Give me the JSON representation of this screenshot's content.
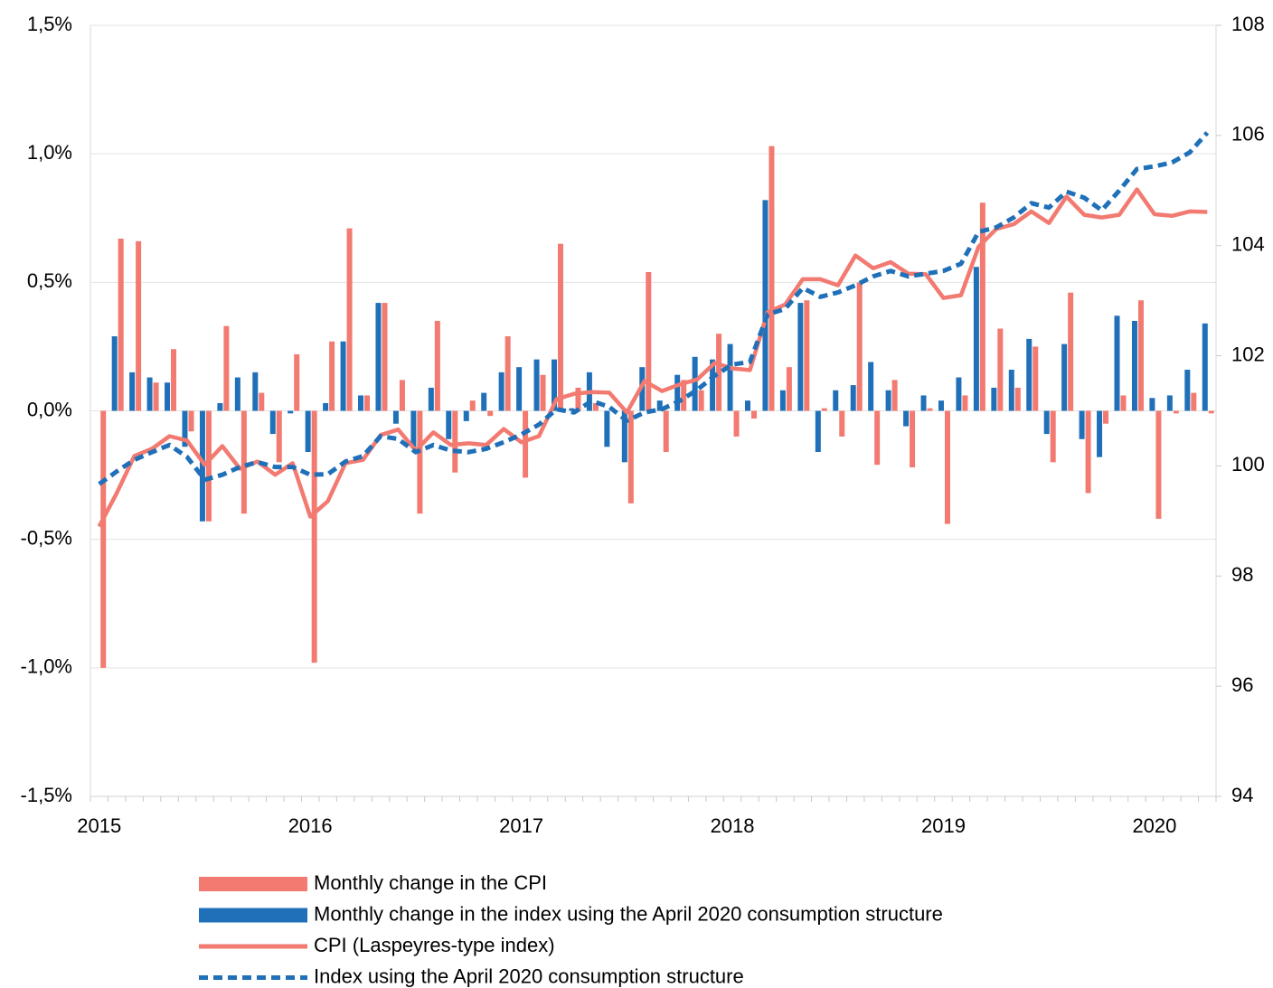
{
  "chart_data": {
    "type": "bar",
    "categories": [
      "2015",
      null,
      null,
      null,
      null,
      null,
      null,
      null,
      null,
      null,
      null,
      null,
      "2016",
      null,
      null,
      null,
      null,
      null,
      null,
      null,
      null,
      null,
      null,
      null,
      "2017",
      null,
      null,
      null,
      null,
      null,
      null,
      null,
      null,
      null,
      null,
      null,
      "2018",
      null,
      null,
      null,
      null,
      null,
      null,
      null,
      null,
      null,
      null,
      null,
      "2019",
      null,
      null,
      null,
      null,
      null,
      null,
      null,
      null,
      null,
      null,
      null,
      "2020",
      null,
      null,
      null
    ],
    "ylim": [
      -1.5,
      1.5
    ],
    "yticks": [
      {
        "value": -1.5,
        "label": "-1,5%"
      },
      {
        "value": -1,
        "label": "-1,0%"
      },
      {
        "value": -0.5,
        "label": "-0,5%"
      },
      {
        "value": 0,
        "label": "0,0%"
      },
      {
        "value": 0.5,
        "label": "0,5%"
      },
      {
        "value": 1,
        "label": "1,0%"
      },
      {
        "value": 1.5,
        "label": "1,5%"
      }
    ],
    "y2lim": [
      94,
      108
    ],
    "y2ticks": [
      94,
      96,
      98,
      100,
      102,
      104,
      106,
      108
    ],
    "grid": true,
    "legend": "bottom",
    "series": [
      {
        "name": "Monthly change in the CPI",
        "type": "bar",
        "color": "#f27a70",
        "values": [
          -1.0,
          0.67,
          0.66,
          0.11,
          0.24,
          -0.08,
          -0.43,
          0.33,
          -0.4,
          0.07,
          -0.2,
          0.22,
          -0.98,
          0.27,
          0.71,
          0.06,
          0.42,
          0.12,
          -0.4,
          0.35,
          -0.24,
          0.04,
          -0.02,
          0.29,
          -0.26,
          0.14,
          0.65,
          0.09,
          0.03,
          0.0,
          -0.36,
          0.54,
          -0.16,
          0.12,
          0.08,
          0.3,
          -0.1,
          -0.03,
          1.03,
          0.17,
          0.43,
          0.01,
          -0.1,
          0.5,
          -0.21,
          0.12,
          -0.22,
          0.01,
          -0.44,
          0.06,
          0.81,
          0.32,
          0.09,
          0.25,
          -0.2,
          0.46,
          -0.32,
          -0.05,
          0.06,
          0.43,
          -0.42,
          -0.01,
          0.07,
          -0.01
        ]
      },
      {
        "name": "Monthly change in the index using the April 2020 consumption structure",
        "type": "bar",
        "color": "#1f70b8",
        "values": [
          0.0,
          0.29,
          0.15,
          0.13,
          0.11,
          -0.14,
          -0.43,
          0.03,
          0.13,
          0.15,
          -0.09,
          -0.01,
          -0.16,
          0.03,
          0.27,
          0.06,
          0.42,
          -0.05,
          -0.14,
          0.09,
          -0.11,
          -0.04,
          0.07,
          0.15,
          0.17,
          0.2,
          0.2,
          0.01,
          0.15,
          -0.14,
          -0.2,
          0.17,
          0.04,
          0.14,
          0.21,
          0.2,
          0.26,
          0.04,
          0.82,
          0.08,
          0.42,
          -0.16,
          0.08,
          0.1,
          0.19,
          0.08,
          -0.06,
          0.06,
          0.04,
          0.13,
          0.56,
          0.09,
          0.16,
          0.28,
          -0.09,
          0.26,
          -0.11,
          -0.18,
          0.37,
          0.35,
          0.05,
          0.06,
          0.16,
          0.34
        ]
      },
      {
        "name": "CPI (Laspeyres-type index)",
        "type": "line",
        "axis": "y2",
        "color": "#f27a70",
        "values": [
          98.9,
          99.51,
          100.18,
          100.31,
          100.54,
          100.46,
          100.02,
          100.36,
          99.95,
          100.08,
          99.84,
          100.05,
          99.08,
          99.36,
          100.05,
          100.11,
          100.56,
          100.66,
          100.28,
          100.61,
          100.38,
          100.41,
          100.38,
          100.67,
          100.43,
          100.54,
          101.21,
          101.31,
          101.34,
          101.33,
          100.97,
          101.54,
          101.36,
          101.48,
          101.57,
          101.87,
          101.77,
          101.74,
          102.79,
          102.93,
          103.39,
          103.39,
          103.28,
          103.82,
          103.59,
          103.7,
          103.49,
          103.48,
          103.05,
          103.1,
          103.98,
          104.3,
          104.39,
          104.62,
          104.41,
          104.89,
          104.56,
          104.51,
          104.56,
          105.02,
          104.57,
          104.54,
          104.62,
          104.61
        ]
      },
      {
        "name": "Index using the April 2020 consumption structure",
        "type": "dashed",
        "axis": "y2",
        "color": "#1f70b8",
        "values": [
          99.67,
          99.9,
          100.11,
          100.25,
          100.38,
          100.16,
          99.75,
          99.84,
          99.98,
          100.07,
          99.98,
          99.98,
          99.84,
          99.85,
          100.08,
          100.18,
          100.54,
          100.49,
          100.25,
          100.38,
          100.28,
          100.25,
          100.31,
          100.43,
          100.57,
          100.75,
          101.03,
          100.97,
          101.18,
          101.07,
          100.82,
          100.97,
          101.03,
          101.18,
          101.38,
          101.64,
          101.84,
          101.89,
          102.75,
          102.85,
          103.23,
          103.07,
          103.15,
          103.28,
          103.44,
          103.54,
          103.44,
          103.49,
          103.54,
          103.67,
          104.25,
          104.33,
          104.51,
          104.77,
          104.69,
          104.98,
          104.87,
          104.64,
          105.0,
          105.39,
          105.44,
          105.51,
          105.69,
          106.05
        ]
      }
    ]
  }
}
